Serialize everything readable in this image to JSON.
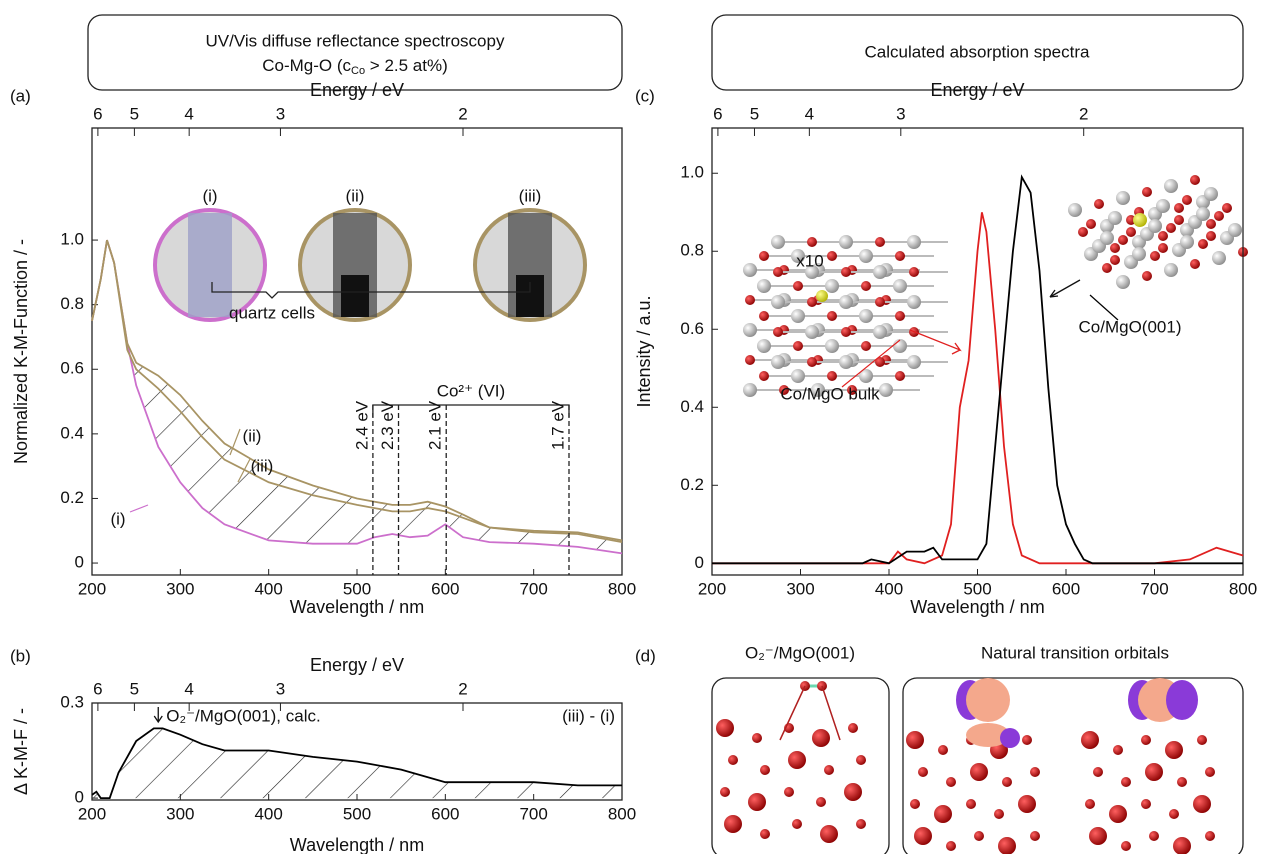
{
  "header_left": {
    "line1": "UV/Vis diffuse reflectance spectroscopy",
    "line2": {
      "before": "Co-Mg-O (c",
      "sub": "Co",
      "after": " > 2.5 at%)"
    }
  },
  "header_right": "Calculated absorption spectra",
  "panel_labels": [
    "(a)",
    "(b)",
    "(c)",
    "(d)"
  ],
  "chart_data": [
    {
      "type": "line",
      "xlabel": "Wavelength / nm",
      "ylabel": "Normalized K-M-Function / -",
      "x2label": "Energy / eV",
      "xlim": [
        200,
        800
      ],
      "xticks": [
        200,
        300,
        400,
        500,
        600,
        700,
        800
      ],
      "ylim": [
        -0.037,
        1.347
      ],
      "yticks": [
        0,
        0.2,
        0.4,
        0.6,
        0.8,
        {
          "value": 1.0,
          "label": "1.0"
        }
      ],
      "x2lim": [
        6.2,
        1.55
      ],
      "x2scale": "reciprocal",
      "x2ticks": [
        6,
        5,
        4,
        3,
        2
      ],
      "hatch": true,
      "series": [
        {
          "name": "(i)",
          "color": "#cc6fcc",
          "x": [
            200,
            210,
            217,
            225,
            240,
            250,
            275,
            300,
            325,
            350,
            400,
            450,
            500,
            520,
            540,
            560,
            580,
            600,
            620,
            650,
            700,
            750,
            800
          ],
          "values": [
            0.75,
            0.88,
            1.0,
            0.93,
            0.68,
            0.55,
            0.36,
            0.25,
            0.17,
            0.12,
            0.07,
            0.06,
            0.06,
            0.08,
            0.09,
            0.08,
            0.085,
            0.12,
            0.08,
            0.065,
            0.06,
            0.05,
            0.03
          ]
        },
        {
          "name": "(ii)",
          "color": "#a89464",
          "x": [
            200,
            210,
            217,
            225,
            240,
            250,
            275,
            300,
            325,
            350,
            400,
            450,
            500,
            520,
            540,
            560,
            580,
            600,
            620,
            650,
            700,
            750,
            800
          ],
          "values": [
            0.75,
            0.88,
            1.0,
            0.93,
            0.68,
            0.62,
            0.58,
            0.52,
            0.44,
            0.37,
            0.29,
            0.24,
            0.2,
            0.19,
            0.18,
            0.18,
            0.19,
            0.175,
            0.15,
            0.11,
            0.1,
            0.095,
            0.07
          ]
        },
        {
          "name": "(iii)",
          "color": "#a89464",
          "x": [
            200,
            210,
            217,
            225,
            240,
            250,
            275,
            300,
            325,
            350,
            400,
            450,
            500,
            520,
            540,
            560,
            580,
            600,
            620,
            650,
            700,
            750,
            800
          ],
          "values": [
            0.75,
            0.88,
            1.0,
            0.93,
            0.66,
            0.6,
            0.54,
            0.47,
            0.39,
            0.32,
            0.25,
            0.21,
            0.18,
            0.17,
            0.16,
            0.16,
            0.17,
            0.16,
            0.14,
            0.11,
            0.095,
            0.09,
            0.065
          ]
        }
      ],
      "insets": [
        "(i)",
        "(ii)",
        "(iii)"
      ],
      "inset_caption": "quartz cells",
      "band_label": "Co²⁺ (VI)",
      "markers": [
        {
          "label": "2.4 eV",
          "x": 518
        },
        {
          "label": "2.3 eV",
          "x": 547
        },
        {
          "label": "2.1 eV",
          "x": 601
        },
        {
          "label": "1.7 eV",
          "x": 740
        }
      ]
    },
    {
      "type": "line",
      "xlabel": "Wavelength / nm",
      "ylabel": "Δ K-M-F / -",
      "x2label": "Energy / eV",
      "xlim": [
        200,
        800
      ],
      "xticks": [
        200,
        300,
        400,
        500,
        600,
        700,
        800
      ],
      "ylim": [
        -0.006,
        0.3
      ],
      "yticks": [
        0,
        0.3
      ],
      "x2lim": [
        6.2,
        1.55
      ],
      "x2scale": "reciprocal",
      "x2ticks": [
        6,
        5,
        4,
        3,
        2
      ],
      "hatch": true,
      "series": [
        {
          "name": "(iii) - (i)",
          "color": "#000000",
          "x": [
            200,
            205,
            210,
            220,
            230,
            250,
            270,
            280,
            300,
            325,
            350,
            375,
            400,
            450,
            500,
            550,
            600,
            650,
            700,
            750,
            800
          ],
          "values": [
            0.01,
            0.02,
            0,
            0,
            0.08,
            0.18,
            0.22,
            0.22,
            0.2,
            0.17,
            0.15,
            0.15,
            0.15,
            0.13,
            0.115,
            0.09,
            0.05,
            0.05,
            0.05,
            0.04,
            0.04
          ]
        }
      ],
      "annotation": {
        "text": "O₂⁻/MgO(001), calc.",
        "x": 275
      }
    },
    {
      "type": "line",
      "xlabel": "Wavelength / nm",
      "ylabel": "Intensity / a.u.",
      "x2label": "Energy / eV",
      "xlim": [
        200,
        800
      ],
      "xticks": [
        200,
        300,
        400,
        500,
        600,
        700,
        800
      ],
      "ylim": [
        -0.03,
        1.116
      ],
      "yticks": [
        0,
        0.2,
        0.4,
        0.6,
        0.8,
        {
          "value": 1.0,
          "label": "1.0"
        }
      ],
      "x2lim": [
        6.2,
        1.55
      ],
      "x2scale": "reciprocal",
      "x2ticks": [
        6,
        5,
        4,
        3,
        2
      ],
      "series": [
        {
          "name": "Co/MgO bulk",
          "color": "#e02020",
          "x": [
            200,
            400,
            410,
            420,
            440,
            460,
            470,
            480,
            490,
            500,
            505,
            510,
            520,
            530,
            540,
            550,
            570,
            700,
            740,
            770,
            800
          ],
          "values": [
            0,
            0,
            0.03,
            0.01,
            0,
            0.02,
            0.1,
            0.4,
            0.52,
            0.8,
            0.9,
            0.85,
            0.6,
            0.3,
            0.1,
            0.02,
            0,
            0,
            0.01,
            0.04,
            0.02
          ]
        },
        {
          "name": "Co/MgO(001)",
          "color": "#000000",
          "x": [
            200,
            370,
            380,
            400,
            420,
            440,
            450,
            460,
            500,
            510,
            520,
            530,
            540,
            550,
            560,
            570,
            580,
            590,
            600,
            610,
            620,
            630,
            800
          ],
          "values": [
            0,
            0,
            0.01,
            0,
            0.03,
            0.03,
            0.04,
            0.01,
            0.01,
            0.05,
            0.3,
            0.55,
            0.8,
            0.99,
            0.95,
            0.75,
            0.45,
            0.2,
            0.1,
            0.05,
            0.01,
            0,
            0
          ]
        }
      ],
      "annotation": {
        "text": "x10"
      }
    }
  ],
  "panel_d": {
    "title_left": "O₂⁻/MgO(001)",
    "title_right": "Natural transition orbitals"
  }
}
